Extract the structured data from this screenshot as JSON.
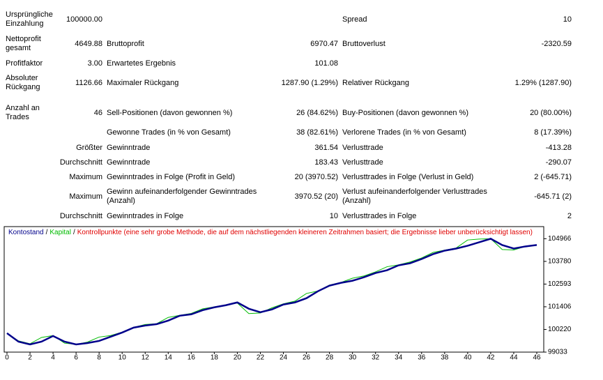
{
  "table": {
    "rows": [
      {
        "label": "Ursprüngliche Einzahlung",
        "value": "100000.00",
        "label3": "Spread",
        "value3": "10"
      },
      {
        "label": "Nettoprofit gesamt",
        "value": "4649.88",
        "label2": "Bruttoprofit",
        "value2": "6970.47",
        "label3": "Bruttoverlust",
        "value3": "-2320.59"
      },
      {
        "label": "Profitfaktor",
        "value": "3.00",
        "label2": "Erwartetes Ergebnis",
        "value2": "101.08"
      },
      {
        "label": "Absoluter Rückgang",
        "value": "1126.66",
        "label2": "Maximaler Rückgang",
        "value2": "1287.90 (1.29%)",
        "label3": "Relativer Rückgang",
        "value3": "1.29% (1287.90)"
      },
      {
        "label": "Anzahl an Trades",
        "value": "46",
        "label2": "Sell-Positionen (davon gewonnen %)",
        "value2": "26 (84.62%)",
        "label3": "Buy-Positionen (davon gewonnen %)",
        "value3": "20 (80.00%)"
      },
      {
        "label2": "Gewonne Trades (in % von Gesamt)",
        "value2": "38 (82.61%)",
        "label3": "Verlorene Trades (in % von Gesamt)",
        "value3": "8 (17.39%)"
      },
      {
        "value": "Größter",
        "label2": "Gewinntrade",
        "value2": "361.54",
        "label3": "Verlusttrade",
        "value3": "-413.28"
      },
      {
        "value": "Durchschnitt",
        "label2": "Gewinntrade",
        "value2": "183.43",
        "label3": "Verlusttrade",
        "value3": "-290.07"
      },
      {
        "value": "Maximum",
        "label2": "Gewinntrades in Folge (Profit in Geld)",
        "value2": "20 (3970.52)",
        "label3": "Verlusttrades in Folge (Verlust in Geld)",
        "value3": "2 (-645.71)"
      },
      {
        "value": "Maximum",
        "label2": "Gewinn aufeinanderfolgender Gewinntrades (Anzahl)",
        "value2": "3970.52 (20)",
        "label3": "Verlust aufeinanderfolgender Verlusttrades (Anzahl)",
        "value3": "-645.71 (2)"
      },
      {
        "value": "Durchschnitt",
        "label2": "Gewinntrades in Folge",
        "value2": "10",
        "label3": "Verlusttrades in Folge",
        "value3": "2"
      }
    ]
  },
  "chart_data": {
    "type": "line",
    "legend_separator": "/",
    "annotation": "Kontrollpunkte (eine sehr grobe Methode, die auf dem nächstliegenden kleineren Zeitrahmen basiert; die Ergebnisse lieber unberücksichtigt lassen)",
    "annotation_color": "#e00000",
    "x": [
      0,
      1,
      2,
      3,
      4,
      5,
      6,
      7,
      8,
      9,
      10,
      11,
      12,
      13,
      14,
      15,
      16,
      17,
      18,
      19,
      20,
      21,
      22,
      23,
      24,
      25,
      26,
      27,
      28,
      29,
      30,
      31,
      32,
      33,
      34,
      35,
      36,
      37,
      38,
      39,
      40,
      41,
      42,
      43,
      44,
      45,
      46
    ],
    "xlim": [
      0,
      46
    ],
    "xticks": [
      0,
      2,
      4,
      6,
      8,
      10,
      12,
      14,
      16,
      18,
      20,
      22,
      24,
      26,
      28,
      30,
      32,
      34,
      36,
      38,
      40,
      42,
      44,
      46
    ],
    "ylim": [
      99033,
      105600
    ],
    "yticks": [
      99033,
      100220,
      101406,
      102593,
      103780,
      104966
    ],
    "series": [
      {
        "name": "Kapital",
        "color": "#00bb00",
        "values": [
          100022,
          99620,
          99470,
          99800,
          99900,
          99500,
          99440,
          99560,
          99820,
          99900,
          100080,
          100330,
          100480,
          100520,
          100850,
          100960,
          101060,
          101300,
          101400,
          101500,
          101600,
          101050,
          101080,
          101350,
          101560,
          101700,
          102100,
          102230,
          102540,
          102680,
          102900,
          103020,
          103230,
          103500,
          103600,
          103750,
          103960,
          104250,
          104370,
          104480,
          104900,
          104950,
          104966,
          104400,
          104380,
          104560,
          104640
        ]
      },
      {
        "name": "Kontostand",
        "color": "#00008b",
        "values": [
          100022,
          99582,
          99436,
          99582,
          99875,
          99582,
          99436,
          99509,
          99619,
          99839,
          100058,
          100315,
          100425,
          100497,
          100681,
          100937,
          101011,
          101230,
          101377,
          101486,
          101633,
          101303,
          101120,
          101267,
          101523,
          101633,
          101853,
          102219,
          102512,
          102658,
          102768,
          102951,
          103171,
          103317,
          103574,
          103683,
          103903,
          104160,
          104342,
          104452,
          104599,
          104782,
          104966,
          104636,
          104452,
          104562,
          104636
        ]
      }
    ]
  }
}
